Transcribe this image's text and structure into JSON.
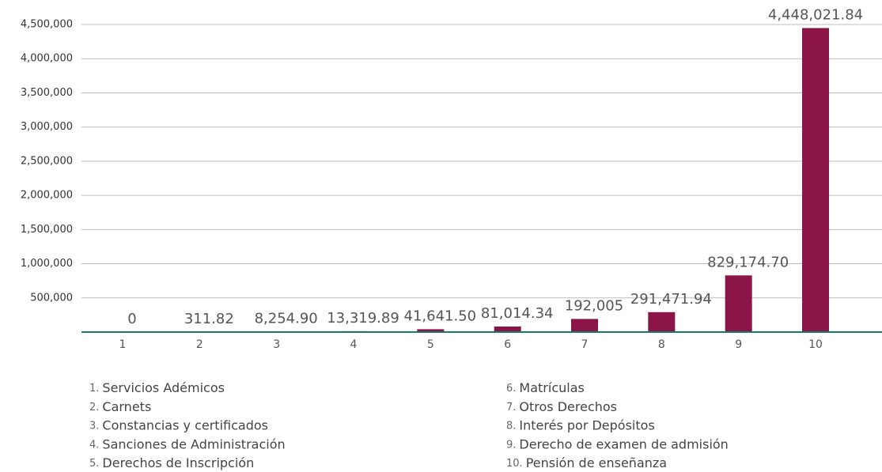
{
  "chart_data": {
    "type": "bar",
    "categories": [
      "1",
      "2",
      "3",
      "4",
      "5",
      "6",
      "7",
      "8",
      "9",
      "10"
    ],
    "values": [
      0,
      311.82,
      8254.9,
      13319.89,
      41641.5,
      81014.34,
      192005,
      291471.94,
      829174.7,
      4448021.84
    ],
    "value_labels": [
      "0",
      "311.82",
      "8,254.90",
      "13,319.89",
      "41,641.50",
      "81,014.34",
      "192,005",
      "291,471.94",
      "829,174.70",
      "4,448,021.84"
    ],
    "color": "#8b1547",
    "ylim": [
      0,
      4500000
    ],
    "yticks": [
      {
        "value": 500000,
        "label": "500,000"
      },
      {
        "value": 1000000,
        "label": "1,000,000"
      },
      {
        "value": 1500000,
        "label": "1,500,000"
      },
      {
        "value": 2000000,
        "label": "2,000,000"
      },
      {
        "value": 2500000,
        "label": "2,500,000"
      },
      {
        "value": 3000000,
        "label": "3,000,000"
      },
      {
        "value": 3500000,
        "label": "3,500,000"
      },
      {
        "value": 4000000,
        "label": "4,000,000"
      },
      {
        "value": 4500000,
        "label": "4,500,000"
      }
    ],
    "grid": true,
    "legend": [
      {
        "number": "1.",
        "label": "Servicios Adémicos"
      },
      {
        "number": "2.",
        "label": "Carnets"
      },
      {
        "number": "3.",
        "label": "Constancias y certificados"
      },
      {
        "number": "4.",
        "label": "Sanciones de Administración"
      },
      {
        "number": "5.",
        "label": "Derechos de Inscripción"
      },
      {
        "number": "6.",
        "label": "Matrículas"
      },
      {
        "number": "7.",
        "label": "Otros Derechos"
      },
      {
        "number": "8.",
        "label": "Interés por Depósitos"
      },
      {
        "number": "9.",
        "label": "Derecho de examen de admisión"
      },
      {
        "number": "10.",
        "label": "Pensión de enseñanza"
      }
    ]
  }
}
